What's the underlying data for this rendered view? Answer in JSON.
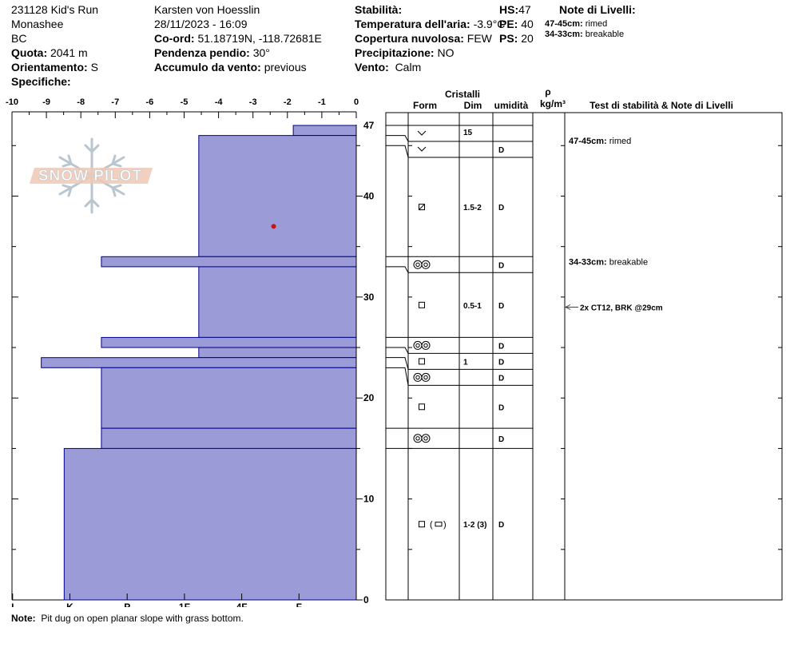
{
  "header": {
    "site_line": "231128 Kid's Run",
    "range": "Monashee",
    "region": "BC",
    "quota_label": "Quota:",
    "quota_value": "2041 m",
    "orient_label": "Orientamento:",
    "orient_value": "S",
    "spec_label": "Specifiche:",
    "observer": "Karsten  von Hoesslin",
    "datetime": "28/11/2023 - 16:09",
    "coord_label": "Co-ord:",
    "coord_value": "51.18719N, -118.72681E",
    "slope_label": "Pendenza pendio:",
    "slope_value": "30°",
    "wind_load_label": "Accumulo da vento:",
    "wind_load_value": "previous",
    "stab_label": "Stabilità:",
    "air_temp_label": "Temperatura dell'aria:",
    "air_temp_value": "-3.9°C",
    "cloud_label": "Copertura nuvolosa:",
    "cloud_value": "FEW",
    "precip_label": "Precipitazione:",
    "precip_value": "NO",
    "wind_label": "Vento:",
    "wind_value": "Calm",
    "hs_label": "HS:",
    "hs_value": "47",
    "pe_label": "PE:",
    "pe_value": "40",
    "ps_label": "PS:",
    "ps_value": "20",
    "notes_title": "Note di Livelli:",
    "notes": [
      {
        "range": "47-45cm:",
        "text": "rimed"
      },
      {
        "range": "34-33cm:",
        "text": "breakable"
      }
    ]
  },
  "logo_text": "SNOW PILOT",
  "note_label": "Note:",
  "note_text": "Pit dug on open planar slope with grass bottom.",
  "table": {
    "crystals_label": "Cristalli",
    "form_label": "Form",
    "dim_label": "Dim",
    "moisture_label": "umidità",
    "rho_label": "ρ",
    "density_unit": "kg/m³",
    "tests_label": "Test di stabilità & Note di Livelli"
  },
  "layers": [
    {
      "top": 47,
      "bottom": 46,
      "form": "v",
      "dim": "15",
      "moisture": ""
    },
    {
      "top": 46,
      "bottom": 45,
      "form": "v",
      "dim": "",
      "moisture": "D"
    },
    {
      "top": 45,
      "bottom": 34,
      "form": "sq-slash",
      "dim": "1.5-2",
      "moisture": "D"
    },
    {
      "top": 34,
      "bottom": 33,
      "form": "dblcircle",
      "dim": "",
      "moisture": "D"
    },
    {
      "top": 33,
      "bottom": 26,
      "form": "square",
      "dim": "0.5-1",
      "moisture": "D"
    },
    {
      "top": 26,
      "bottom": 25,
      "form": "dblcircle",
      "dim": "",
      "moisture": "D"
    },
    {
      "top": 25,
      "bottom": 24,
      "form": "square",
      "dim": "1",
      "moisture": "D"
    },
    {
      "top": 24,
      "bottom": 23,
      "form": "dblcircle",
      "dim": "",
      "moisture": "D"
    },
    {
      "top": 23,
      "bottom": 17,
      "form": "square",
      "dim": "",
      "moisture": "D"
    },
    {
      "top": 17,
      "bottom": 15,
      "form": "dblcircle",
      "dim": "",
      "moisture": "D"
    },
    {
      "top": 15,
      "bottom": 0,
      "form": "square-paren-rect",
      "dim": "1-2 (3)",
      "moisture": "D"
    }
  ],
  "layer_notes": [
    {
      "depth": 45.5,
      "range": "47-45cm:",
      "text": "rimed"
    },
    {
      "depth": 33.5,
      "range": "34-33cm:",
      "text": "breakable"
    }
  ],
  "stability_tests": [
    {
      "depth": 29,
      "text": "2x CT12, BRK @29cm"
    }
  ],
  "chart_data": {
    "type": "bar",
    "orientation": "horizontal-step",
    "description_axis_top": "temperature (°C)",
    "x_top_ticks": [
      "-10",
      "-9",
      "-8",
      "-7",
      "-6",
      "-5",
      "-4",
      "-3",
      "-2",
      "-1",
      "0"
    ],
    "x_bottom_ticks": [
      "I",
      "K",
      "P",
      "1F",
      "4F",
      "F"
    ],
    "y_ticks": [
      "0",
      "10",
      "20",
      "30",
      "40",
      "47"
    ],
    "ylim": [
      0,
      47
    ],
    "hardness_scale": {
      "F": 1,
      "4F": 2,
      "1F": 3,
      "P": 4,
      "K": 5,
      "I": 6
    },
    "layers": [
      {
        "top": 47,
        "bottom": 46,
        "hardness": 1.1
      },
      {
        "top": 46,
        "bottom": 34,
        "hardness": 2.75
      },
      {
        "top": 34,
        "bottom": 33,
        "hardness": 4.45
      },
      {
        "top": 33,
        "bottom": 26,
        "hardness": 2.75
      },
      {
        "top": 26,
        "bottom": 25,
        "hardness": 4.45
      },
      {
        "top": 25,
        "bottom": 24,
        "hardness": 2.75
      },
      {
        "top": 24,
        "bottom": 23,
        "hardness": 5.5
      },
      {
        "top": 23,
        "bottom": 17,
        "hardness": 4.45
      },
      {
        "top": 17,
        "bottom": 15,
        "hardness": 4.45
      },
      {
        "top": 15,
        "bottom": 0,
        "hardness": 5.1
      }
    ],
    "temperature_points": [
      {
        "temp": -2.4,
        "depth": 37
      }
    ],
    "colors": {
      "fill": "#9b9bd7",
      "stroke": "#00008b",
      "temp": "#cc1111"
    }
  }
}
